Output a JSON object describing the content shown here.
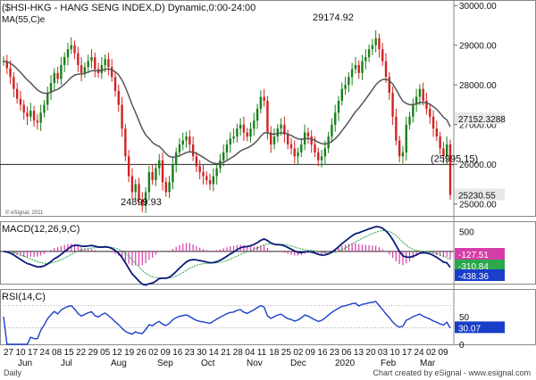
{
  "colors": {
    "price_up": "#1a7f1a",
    "price_down": "#d22222",
    "ma": "#555555",
    "macd_line": "#0a1a7a",
    "macd_signal": "#2aa84a",
    "macd_hist": "#d63ca8",
    "rsi": "#1a3ec8",
    "axis_box_blue": "#1a3ec8",
    "axis_box_green": "#2aa84a",
    "axis_box_red": "#d63ca8"
  },
  "chart_data": [
    {
      "type": "candlestick",
      "title": "($HSI-HKG - HANG SENG INDEX,D) Dynamic,0:00-24:00",
      "ma_label": "MA(55,C)e",
      "ylim": [
        24700,
        30050
      ],
      "y_ticks": [
        25000,
        26000,
        27000,
        28000,
        29000,
        30000
      ],
      "y_tick_labels": [
        "25000.00",
        "26000.00",
        "27000.00",
        "28000.00",
        "29000.00",
        "30000.00"
      ],
      "annotations": [
        {
          "text": "29174.92",
          "value": 29174.92
        },
        {
          "text": "24899.93",
          "value": 24899.93
        },
        {
          "text": "(25995.15)",
          "value": 25995.15
        }
      ],
      "horizontal_line": 25995.15,
      "last_price_label": "25230.55",
      "ma_last_label": "27152.3288",
      "watermark": "© eSignal, 2011",
      "closes": [
        28600,
        28420,
        28200,
        27900,
        27650,
        27500,
        27300,
        27200,
        27350,
        27100,
        27050,
        27300,
        27500,
        27800,
        28050,
        28300,
        28150,
        28500,
        28700,
        28900,
        29000,
        28800,
        28500,
        28300,
        28450,
        28600,
        28700,
        28400,
        28300,
        28500,
        28650,
        28450,
        28200,
        27850,
        27500,
        26900,
        26200,
        25700,
        25300,
        25500,
        25100,
        24950,
        25300,
        25800,
        25600,
        25900,
        26100,
        25550,
        25300,
        25550,
        26000,
        26300,
        26500,
        26600,
        26700,
        26500,
        26200,
        25950,
        25800,
        25700,
        25600,
        25500,
        25700,
        25900,
        26100,
        26300,
        26500,
        26650,
        26700,
        26900,
        27000,
        26800,
        26700,
        26900,
        27100,
        27400,
        27700,
        27600,
        26800,
        26500,
        26700,
        26900,
        27000,
        26750,
        26500,
        26400,
        26200,
        26300,
        26500,
        26800,
        26700,
        26500,
        26300,
        26100,
        26200,
        26400,
        26700,
        27000,
        27300,
        27600,
        27900,
        28000,
        28200,
        28400,
        28500,
        28300,
        28600,
        28700,
        28900,
        29000,
        29174,
        28900,
        28600,
        28200,
        27800,
        27200,
        26600,
        26200,
        26300,
        27000,
        27200,
        27500,
        27700,
        27900,
        27600,
        27400,
        27200,
        26900,
        26700,
        26400,
        26200,
        26500,
        25230
      ],
      "ma_x_start_index": 0
    },
    {
      "type": "line",
      "title": "MACD(12,26,9,C)",
      "ylim": [
        -800,
        750
      ],
      "y_ticks": [
        500,
        0
      ],
      "y_tick_labels": [
        "500",
        "0"
      ],
      "last_labels": [
        "-127.51",
        "-310.84",
        "-438.36"
      ],
      "series": [
        {
          "name": "MACD",
          "role": "macd"
        },
        {
          "name": "Signal",
          "role": "signal"
        },
        {
          "name": "Histogram",
          "role": "hist"
        }
      ]
    },
    {
      "type": "line",
      "title": "RSI(14,C)",
      "ylim": [
        0,
        100
      ],
      "y_ticks": [
        50,
        0
      ],
      "y_tick_labels": [
        "50",
        "0"
      ],
      "levels": [
        30,
        70
      ],
      "last_label": "30.07"
    }
  ],
  "x_axis": {
    "day_labels": [
      "27",
      "10",
      "17",
      "24",
      "08",
      "15",
      "22",
      "29",
      "05",
      "12",
      "19",
      "26",
      "02",
      "09",
      "16",
      "23",
      "30",
      "14",
      "21",
      "28",
      "04",
      "11",
      "18",
      "25",
      "02",
      "09",
      "16",
      "23",
      "06",
      "13",
      "20",
      "03",
      "10",
      "17",
      "24",
      "02",
      "09"
    ],
    "month_labels": [
      "Jun",
      "Jul",
      "Aug",
      "Sep",
      "Oct",
      "Nov",
      "Dec",
      "2020",
      "Feb",
      "Mar"
    ]
  },
  "footer": {
    "left": "Daily",
    "right": "Chart created by eSignal - www.esignal.com"
  }
}
